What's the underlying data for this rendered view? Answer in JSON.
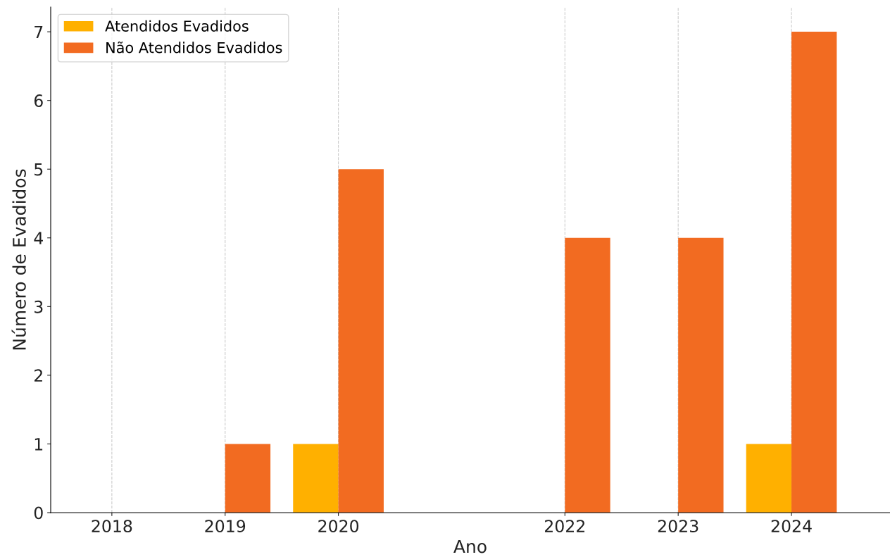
{
  "chart_data": {
    "type": "bar",
    "x": [
      2018,
      2019,
      2020,
      2022,
      2023,
      2024
    ],
    "series": [
      {
        "name": "Atendidos Evadidos",
        "color": "#ffb000",
        "values": [
          0,
          0,
          1,
          0,
          0,
          1
        ]
      },
      {
        "name": "Não Atendidos Evadidos",
        "color": "#f26b21",
        "values": [
          0,
          1,
          5,
          4,
          4,
          7
        ]
      }
    ],
    "xlabel": "Ano",
    "ylabel": "Número de Evadidos",
    "xlim": [
      2017.46,
      2024.87
    ],
    "xticks": [
      2018,
      2019,
      2020,
      2022,
      2023,
      2024
    ],
    "ylim": [
      0,
      7.36
    ],
    "yticks": [
      0,
      1,
      2,
      3,
      4,
      5,
      6,
      7
    ],
    "grid": "x",
    "legend": "top left"
  }
}
